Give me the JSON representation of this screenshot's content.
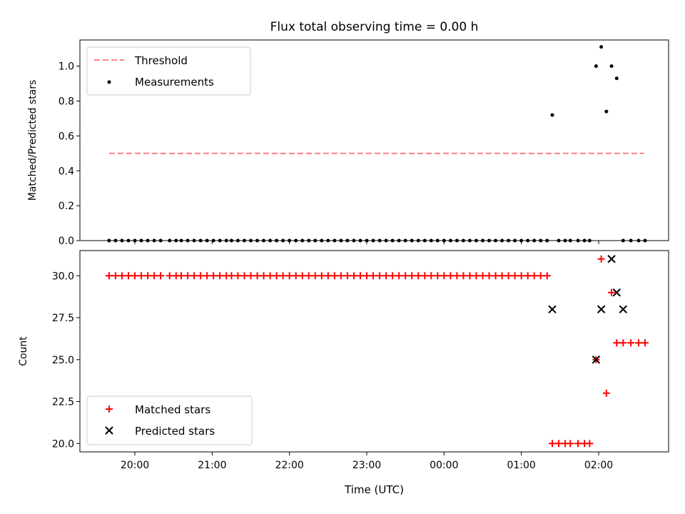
{
  "chart_data": [
    {
      "type": "scatter",
      "title": "Flux total observing time = 0.00 h",
      "xlabel": "",
      "ylabel": "Matched/Predicted stars",
      "ylim": [
        0,
        1.15
      ],
      "yticks": [
        "0.0",
        "0.2",
        "0.4",
        "0.6",
        "0.8",
        "1.0"
      ],
      "ytick_values": [
        0,
        0.2,
        0.4,
        0.6,
        0.8,
        1.0
      ],
      "grid": false,
      "legend_position": "upper-left",
      "series": [
        {
          "name": "Threshold",
          "kind": "dashed-line",
          "color": "#ff8080",
          "x": [
            "19:40",
            "02:35"
          ],
          "y": [
            0.5,
            0.5
          ]
        },
        {
          "name": "Measurements",
          "kind": "dot",
          "color": "#000000",
          "x": [
            "19:40",
            "19:45",
            "19:50",
            "19:55",
            "20:00",
            "20:05",
            "20:10",
            "20:15",
            "20:20",
            "20:27",
            "20:32",
            "20:36",
            "20:41",
            "20:46",
            "20:51",
            "20:56",
            "21:01",
            "21:06",
            "21:11",
            "21:15",
            "21:20",
            "21:25",
            "21:30",
            "21:35",
            "21:40",
            "21:45",
            "21:50",
            "21:55",
            "22:00",
            "22:05",
            "22:10",
            "22:15",
            "22:20",
            "22:25",
            "22:30",
            "22:35",
            "22:40",
            "22:45",
            "22:50",
            "22:55",
            "23:00",
            "23:05",
            "23:10",
            "23:15",
            "23:20",
            "23:25",
            "23:30",
            "23:35",
            "23:40",
            "23:45",
            "23:50",
            "23:55",
            "00:00",
            "00:05",
            "00:10",
            "00:15",
            "00:20",
            "00:25",
            "00:30",
            "00:35",
            "00:40",
            "00:45",
            "00:50",
            "00:55",
            "01:00",
            "01:05",
            "01:10",
            "01:15",
            "01:20",
            "01:24",
            "01:29",
            "01:34",
            "01:38",
            "01:44",
            "01:49",
            "01:53",
            "01:58",
            "02:02",
            "02:06",
            "02:10",
            "02:14",
            "02:19",
            "02:25",
            "02:31",
            "02:36"
          ],
          "y": [
            0,
            0,
            0,
            0,
            0,
            0,
            0,
            0,
            0,
            0,
            0,
            0,
            0,
            0,
            0,
            0,
            0,
            0,
            0,
            0,
            0,
            0,
            0,
            0,
            0,
            0,
            0,
            0,
            0,
            0,
            0,
            0,
            0,
            0,
            0,
            0,
            0,
            0,
            0,
            0,
            0,
            0,
            0,
            0,
            0,
            0,
            0,
            0,
            0,
            0,
            0,
            0,
            0,
            0,
            0,
            0,
            0,
            0,
            0,
            0,
            0,
            0,
            0,
            0,
            0,
            0,
            0,
            0,
            0,
            0.72,
            0,
            0,
            0,
            0,
            0,
            0,
            1.0,
            1.11,
            0.74,
            1.0,
            0.93,
            0,
            0,
            0,
            0
          ]
        }
      ]
    },
    {
      "type": "scatter",
      "title": "",
      "xlabel": "Time (UTC)",
      "ylabel": "Count",
      "ylim": [
        19.5,
        31.5
      ],
      "yticks": [
        "20.0",
        "22.5",
        "25.0",
        "27.5",
        "30.0"
      ],
      "ytick_values": [
        20,
        22.5,
        25,
        27.5,
        30
      ],
      "xticks": [
        "20:00",
        "21:00",
        "22:00",
        "23:00",
        "00:00",
        "01:00",
        "02:00"
      ],
      "grid": false,
      "legend_position": "lower-left",
      "series": [
        {
          "name": "Matched stars",
          "kind": "plus",
          "color": "#ff0000",
          "x": [
            "19:40",
            "19:45",
            "19:50",
            "19:55",
            "20:00",
            "20:05",
            "20:10",
            "20:15",
            "20:20",
            "20:27",
            "20:32",
            "20:36",
            "20:41",
            "20:46",
            "20:51",
            "20:56",
            "21:01",
            "21:06",
            "21:11",
            "21:15",
            "21:20",
            "21:25",
            "21:30",
            "21:35",
            "21:40",
            "21:45",
            "21:50",
            "21:55",
            "22:00",
            "22:05",
            "22:10",
            "22:15",
            "22:20",
            "22:25",
            "22:30",
            "22:35",
            "22:40",
            "22:45",
            "22:50",
            "22:55",
            "23:00",
            "23:05",
            "23:10",
            "23:15",
            "23:20",
            "23:25",
            "23:30",
            "23:35",
            "23:40",
            "23:45",
            "23:50",
            "23:55",
            "00:00",
            "00:05",
            "00:10",
            "00:15",
            "00:20",
            "00:25",
            "00:30",
            "00:35",
            "00:40",
            "00:45",
            "00:50",
            "00:55",
            "01:00",
            "01:05",
            "01:10",
            "01:15",
            "01:20",
            "01:24",
            "01:29",
            "01:34",
            "01:38",
            "01:44",
            "01:49",
            "01:53",
            "01:58",
            "02:02",
            "02:06",
            "02:10",
            "02:14",
            "02:19",
            "02:25",
            "02:31",
            "02:36"
          ],
          "y": [
            30,
            30,
            30,
            30,
            30,
            30,
            30,
            30,
            30,
            30,
            30,
            30,
            30,
            30,
            30,
            30,
            30,
            30,
            30,
            30,
            30,
            30,
            30,
            30,
            30,
            30,
            30,
            30,
            30,
            30,
            30,
            30,
            30,
            30,
            30,
            30,
            30,
            30,
            30,
            30,
            30,
            30,
            30,
            30,
            30,
            30,
            30,
            30,
            30,
            30,
            30,
            30,
            30,
            30,
            30,
            30,
            30,
            30,
            30,
            30,
            30,
            30,
            30,
            30,
            30,
            30,
            30,
            30,
            30,
            20,
            20,
            20,
            20,
            20,
            20,
            20,
            25,
            31,
            23,
            29,
            26,
            26,
            26,
            26,
            26
          ]
        },
        {
          "name": "Predicted stars",
          "kind": "x",
          "color": "#000000",
          "x": [
            "01:24",
            "01:58",
            "02:02",
            "02:10",
            "02:14",
            "02:19"
          ],
          "y": [
            28,
            25,
            28,
            31,
            29,
            28
          ]
        }
      ]
    }
  ]
}
